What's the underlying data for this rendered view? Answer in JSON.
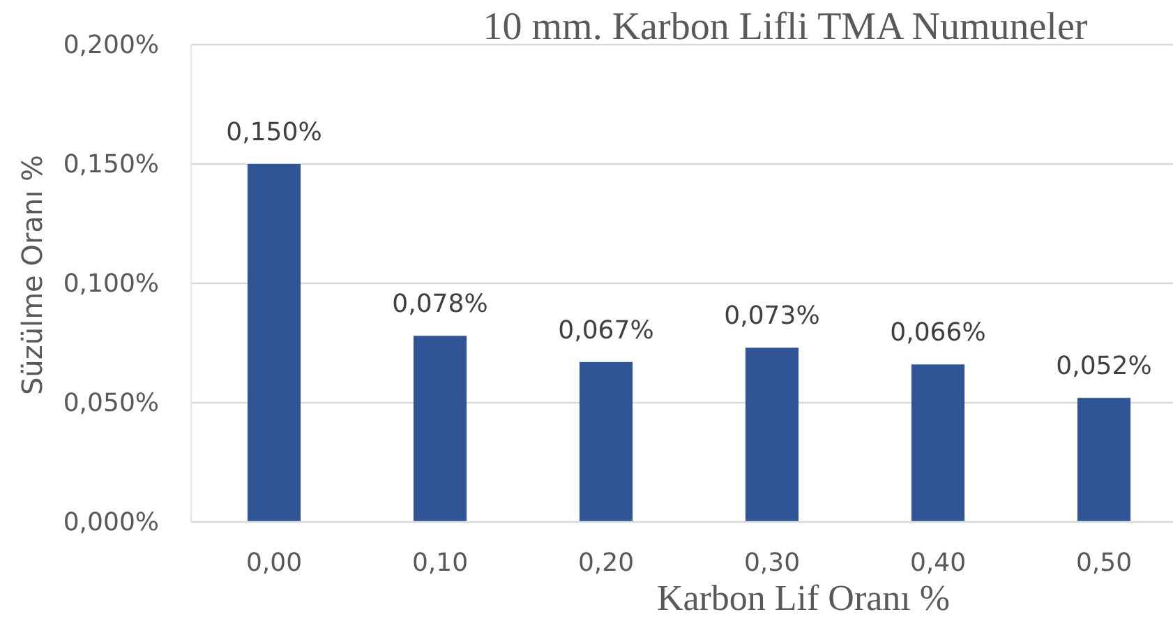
{
  "chart_data": {
    "type": "bar",
    "title": "10 mm. Karbon Lifli TMA Numuneler",
    "xlabel": "Karbon Lif Oranı %",
    "ylabel": "Süzülme Oranı %",
    "categories": [
      "0,00",
      "0,10",
      "0,20",
      "0,30",
      "0,40",
      "0,50"
    ],
    "values": [
      0.15,
      0.078,
      0.067,
      0.073,
      0.066,
      0.052
    ],
    "color": "#2f5597",
    "value_labels": [
      "0,150%",
      "0,078%",
      "0,067%",
      "0,073%",
      "0,066%",
      "0,052%"
    ],
    "ylim": [
      0,
      0.2
    ],
    "yticks": [
      {
        "value": 0,
        "label": "0,000%"
      },
      {
        "value": 0.05,
        "label": "0,050%"
      },
      {
        "value": 0.1,
        "label": "0,100%"
      },
      {
        "value": 0.15,
        "label": "0,150%"
      },
      {
        "value": 0.2,
        "label": "0,200%"
      }
    ],
    "grid": "y"
  }
}
